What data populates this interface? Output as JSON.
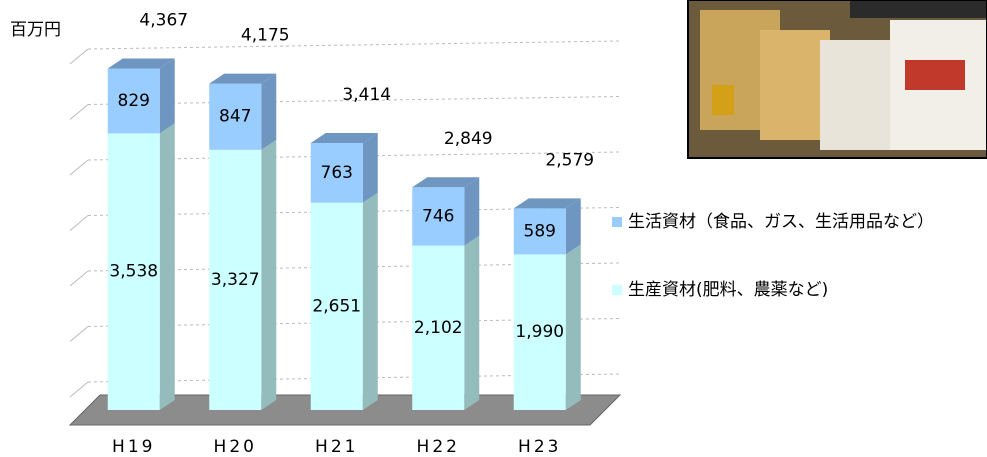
{
  "chart_data": {
    "type": "stacked_bar_3d",
    "unit_label": "百万円",
    "categories": [
      "H19",
      "H20",
      "H21",
      "H22",
      "H23"
    ],
    "series": [
      {
        "name": "生産資材(肥料、農薬など)",
        "color": "#ccffff",
        "side_color": "#94bcbc",
        "values": [
          3538,
          3327,
          2651,
          2102,
          1990
        ],
        "value_labels": [
          "3,538",
          "3,327",
          "2,651",
          "2,102",
          "1,990"
        ]
      },
      {
        "name": "生活資材（食品、ガス、生活用品など）",
        "color": "#99ccff",
        "side_color": "#6f96c0",
        "values": [
          829,
          847,
          763,
          746,
          589
        ]
      }
    ],
    "totals": [
      4367,
      4175,
      3414,
      2849,
      2579
    ],
    "total_labels": [
      "4,367",
      "4,175",
      "3,414",
      "2,849",
      "2,579"
    ],
    "ylim": [
      0,
      5000
    ],
    "grid": true
  }
}
